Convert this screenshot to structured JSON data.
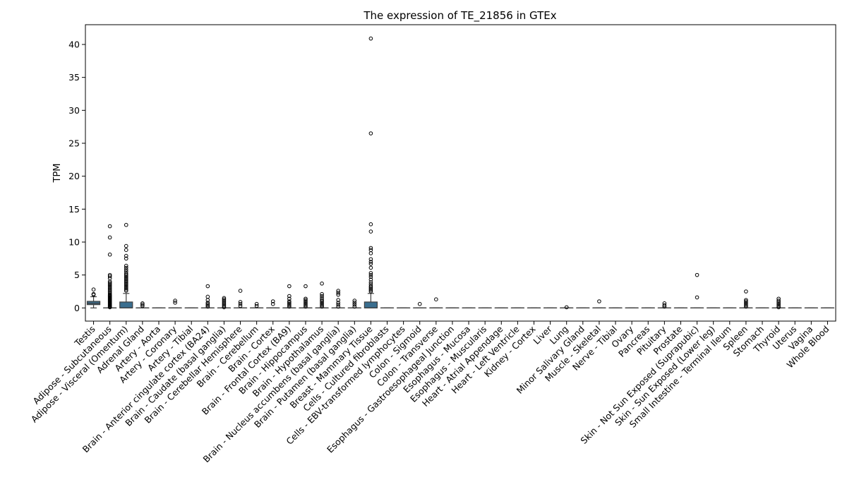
{
  "chart_data": {
    "type": "box",
    "title": "The expression of TE_21856 in GTEx",
    "xlabel": "",
    "ylabel": "TPM",
    "ylim": [
      -2,
      43
    ],
    "yticks": [
      0,
      5,
      10,
      15,
      20,
      25,
      30,
      35,
      40
    ],
    "box_color": "#3a6e8f",
    "grid": false,
    "categories": [
      "Testis",
      "Adipose - Subcutaneous",
      "Adipose - Visceral (Omentum)",
      "Adrenal Gland",
      "Artery - Aorta",
      "Artery - Coronary",
      "Artery - Tibial",
      "Brain - Anterior cingulate cortex (BA24)",
      "Brain - Caudate (basal ganglia)",
      "Brain - Cerebellar Hemisphere",
      "Brain - Cerebellum",
      "Brain - Cortex",
      "Brain - Frontal Cortex (BA9)",
      "Brain - Hippocampus",
      "Brain - Hypothalamus",
      "Brain - Nucleus accumbens (basal ganglia)",
      "Brain - Putamen (basal ganglia)",
      "Breast - Mammary Tissue",
      "Cells - Cultured fibroblasts",
      "Cells - EBV-transformed lymphocytes",
      "Colon - Sigmoid",
      "Colon - Transverse",
      "Esophagus - Gastroesophageal Junction",
      "Esophagus - Mucosa",
      "Esophagus - Muscularis",
      "Heart - Atrial Appendage",
      "Heart - Left Ventricle",
      "Kidney - Cortex",
      "Liver",
      "Lung",
      "Minor Salivary Gland",
      "Muscle - Skeletal",
      "Nerve - Tibial",
      "Ovary",
      "Pancreas",
      "Pituitary",
      "Prostate",
      "Skin - Not Sun Exposed (Suprapubic)",
      "Skin - Sun Exposed (Lower leg)",
      "Small Intestine - Terminal Ileum",
      "Spleen",
      "Stomach",
      "Thyroid",
      "Uterus",
      "Vagina",
      "Whole Blood"
    ],
    "boxes": [
      {
        "q1": 0.5,
        "median": 0.7,
        "q3": 1.0,
        "whislo": 0.0,
        "whishi": 1.7,
        "fliers": [
          2.0,
          2.1,
          2.8
        ]
      },
      {
        "q1": 0.0,
        "median": 0.0,
        "q3": 0.0,
        "whislo": 0.0,
        "whishi": 0.0,
        "fliers": [
          0.1,
          0.2,
          0.3,
          0.4,
          0.5,
          0.6,
          0.7,
          0.8,
          0.9,
          1.0,
          1.1,
          1.2,
          1.3,
          1.4,
          1.5,
          1.6,
          1.7,
          1.8,
          1.9,
          2.0,
          2.2,
          2.4,
          2.6,
          2.8,
          3.0,
          3.2,
          3.4,
          3.6,
          3.8,
          4.0,
          4.5,
          4.8,
          5.0,
          8.1,
          10.7,
          12.4
        ]
      },
      {
        "q1": 0.0,
        "median": 0.0,
        "q3": 0.9,
        "whislo": 0.0,
        "whishi": 2.2,
        "fliers": [
          2.6,
          2.8,
          3.0,
          3.2,
          3.4,
          3.6,
          3.8,
          4.0,
          4.2,
          4.4,
          4.6,
          4.8,
          5.0,
          5.2,
          5.5,
          5.8,
          6.1,
          6.4,
          7.5,
          7.9,
          8.8,
          9.4,
          12.6
        ]
      },
      {
        "q1": 0.0,
        "median": 0.0,
        "q3": 0.0,
        "whislo": 0.0,
        "whishi": 0.0,
        "fliers": [
          0.3,
          0.5,
          0.7
        ]
      },
      {
        "q1": 0.0,
        "median": 0.0,
        "q3": 0.0,
        "whislo": 0.0,
        "whishi": 0.0,
        "fliers": []
      },
      {
        "q1": 0.0,
        "median": 0.0,
        "q3": 0.0,
        "whislo": 0.0,
        "whishi": 0.0,
        "fliers": [
          0.8,
          1.1
        ]
      },
      {
        "q1": 0.0,
        "median": 0.0,
        "q3": 0.0,
        "whislo": 0.0,
        "whishi": 0.0,
        "fliers": []
      },
      {
        "q1": 0.0,
        "median": 0.0,
        "q3": 0.0,
        "whislo": 0.0,
        "whishi": 0.0,
        "fliers": [
          0.2,
          0.4,
          0.6,
          0.8,
          1.2,
          1.7,
          3.3
        ]
      },
      {
        "q1": 0.0,
        "median": 0.0,
        "q3": 0.0,
        "whislo": 0.0,
        "whishi": 0.0,
        "fliers": [
          0.1,
          0.3,
          0.5,
          0.7,
          0.9,
          1.1,
          1.3,
          1.5
        ]
      },
      {
        "q1": 0.0,
        "median": 0.0,
        "q3": 0.0,
        "whislo": 0.0,
        "whishi": 0.0,
        "fliers": [
          0.3,
          0.6,
          0.9,
          2.6
        ]
      },
      {
        "q1": 0.0,
        "median": 0.0,
        "q3": 0.0,
        "whislo": 0.0,
        "whishi": 0.0,
        "fliers": [
          0.3,
          0.6
        ]
      },
      {
        "q1": 0.0,
        "median": 0.0,
        "q3": 0.0,
        "whislo": 0.0,
        "whishi": 0.0,
        "fliers": [
          0.6,
          1.0
        ]
      },
      {
        "q1": 0.0,
        "median": 0.0,
        "q3": 0.0,
        "whislo": 0.0,
        "whishi": 0.0,
        "fliers": [
          0.2,
          0.4,
          0.6,
          0.8,
          1.0,
          1.4,
          1.8,
          3.3
        ]
      },
      {
        "q1": 0.0,
        "median": 0.0,
        "q3": 0.0,
        "whislo": 0.0,
        "whishi": 0.0,
        "fliers": [
          0.2,
          0.4,
          0.6,
          0.8,
          1.0,
          1.2,
          1.4,
          3.3
        ]
      },
      {
        "q1": 0.0,
        "median": 0.0,
        "q3": 0.0,
        "whislo": 0.0,
        "whishi": 0.0,
        "fliers": [
          0.2,
          0.4,
          0.6,
          0.8,
          1.0,
          1.2,
          1.5,
          1.8,
          2.1,
          3.7
        ]
      },
      {
        "q1": 0.0,
        "median": 0.0,
        "q3": 0.0,
        "whislo": 0.0,
        "whishi": 0.0,
        "fliers": [
          0.2,
          0.5,
          0.8,
          1.2,
          2.0,
          2.3,
          2.6
        ]
      },
      {
        "q1": 0.0,
        "median": 0.0,
        "q3": 0.0,
        "whislo": 0.0,
        "whishi": 0.0,
        "fliers": [
          0.2,
          0.5,
          0.8,
          1.1
        ]
      },
      {
        "q1": 0.0,
        "median": 0.0,
        "q3": 0.9,
        "whislo": 0.0,
        "whishi": 2.2,
        "fliers": [
          2.5,
          2.7,
          2.9,
          3.1,
          3.3,
          3.6,
          3.9,
          4.3,
          4.7,
          5.0,
          5.3,
          6.1,
          6.7,
          7.0,
          7.4,
          8.3,
          8.8,
          9.1,
          11.6,
          12.7,
          26.5,
          40.9
        ]
      },
      {
        "q1": 0.0,
        "median": 0.0,
        "q3": 0.0,
        "whislo": 0.0,
        "whishi": 0.0,
        "fliers": []
      },
      {
        "q1": 0.0,
        "median": 0.0,
        "q3": 0.0,
        "whislo": 0.0,
        "whishi": 0.0,
        "fliers": []
      },
      {
        "q1": 0.0,
        "median": 0.0,
        "q3": 0.0,
        "whislo": 0.0,
        "whishi": 0.0,
        "fliers": [
          0.6
        ]
      },
      {
        "q1": 0.0,
        "median": 0.0,
        "q3": 0.0,
        "whislo": 0.0,
        "whishi": 0.0,
        "fliers": [
          1.3
        ]
      },
      {
        "q1": 0.0,
        "median": 0.0,
        "q3": 0.0,
        "whislo": 0.0,
        "whishi": 0.0,
        "fliers": []
      },
      {
        "q1": 0.0,
        "median": 0.0,
        "q3": 0.0,
        "whislo": 0.0,
        "whishi": 0.0,
        "fliers": []
      },
      {
        "q1": 0.0,
        "median": 0.0,
        "q3": 0.0,
        "whislo": 0.0,
        "whishi": 0.0,
        "fliers": []
      },
      {
        "q1": 0.0,
        "median": 0.0,
        "q3": 0.0,
        "whislo": 0.0,
        "whishi": 0.0,
        "fliers": []
      },
      {
        "q1": 0.0,
        "median": 0.0,
        "q3": 0.0,
        "whislo": 0.0,
        "whishi": 0.0,
        "fliers": []
      },
      {
        "q1": 0.0,
        "median": 0.0,
        "q3": 0.0,
        "whislo": 0.0,
        "whishi": 0.0,
        "fliers": []
      },
      {
        "q1": 0.0,
        "median": 0.0,
        "q3": 0.0,
        "whislo": 0.0,
        "whishi": 0.0,
        "fliers": []
      },
      {
        "q1": 0.0,
        "median": 0.0,
        "q3": 0.0,
        "whislo": 0.0,
        "whishi": 0.0,
        "fliers": [
          0.1
        ]
      },
      {
        "q1": 0.0,
        "median": 0.0,
        "q3": 0.0,
        "whislo": 0.0,
        "whishi": 0.0,
        "fliers": []
      },
      {
        "q1": 0.0,
        "median": 0.0,
        "q3": 0.0,
        "whislo": 0.0,
        "whishi": 0.0,
        "fliers": [
          1.0
        ]
      },
      {
        "q1": 0.0,
        "median": 0.0,
        "q3": 0.0,
        "whislo": 0.0,
        "whishi": 0.0,
        "fliers": []
      },
      {
        "q1": 0.0,
        "median": 0.0,
        "q3": 0.0,
        "whislo": 0.0,
        "whishi": 0.0,
        "fliers": []
      },
      {
        "q1": 0.0,
        "median": 0.0,
        "q3": 0.0,
        "whislo": 0.0,
        "whishi": 0.0,
        "fliers": []
      },
      {
        "q1": 0.0,
        "median": 0.0,
        "q3": 0.0,
        "whislo": 0.0,
        "whishi": 0.0,
        "fliers": [
          0.2,
          0.4,
          0.7
        ]
      },
      {
        "q1": 0.0,
        "median": 0.0,
        "q3": 0.0,
        "whislo": 0.0,
        "whishi": 0.0,
        "fliers": []
      },
      {
        "q1": 0.0,
        "median": 0.0,
        "q3": 0.0,
        "whislo": 0.0,
        "whishi": 0.0,
        "fliers": [
          1.6,
          5.0
        ]
      },
      {
        "q1": 0.0,
        "median": 0.0,
        "q3": 0.0,
        "whislo": 0.0,
        "whishi": 0.0,
        "fliers": []
      },
      {
        "q1": 0.0,
        "median": 0.0,
        "q3": 0.0,
        "whislo": 0.0,
        "whishi": 0.0,
        "fliers": []
      },
      {
        "q1": 0.0,
        "median": 0.0,
        "q3": 0.0,
        "whislo": 0.0,
        "whishi": 0.0,
        "fliers": [
          0.2,
          0.4,
          0.6,
          0.8,
          1.0,
          1.2,
          2.5
        ]
      },
      {
        "q1": 0.0,
        "median": 0.0,
        "q3": 0.0,
        "whislo": 0.0,
        "whishi": 0.0,
        "fliers": []
      },
      {
        "q1": 0.0,
        "median": 0.0,
        "q3": 0.0,
        "whislo": 0.0,
        "whishi": 0.0,
        "fliers": [
          0.1,
          0.3,
          0.5,
          0.7,
          0.9,
          1.1,
          1.4
        ]
      },
      {
        "q1": 0.0,
        "median": 0.0,
        "q3": 0.0,
        "whislo": 0.0,
        "whishi": 0.0,
        "fliers": []
      },
      {
        "q1": 0.0,
        "median": 0.0,
        "q3": 0.0,
        "whislo": 0.0,
        "whishi": 0.0,
        "fliers": []
      },
      {
        "q1": 0.0,
        "median": 0.0,
        "q3": 0.0,
        "whislo": 0.0,
        "whishi": 0.0,
        "fliers": []
      }
    ]
  }
}
